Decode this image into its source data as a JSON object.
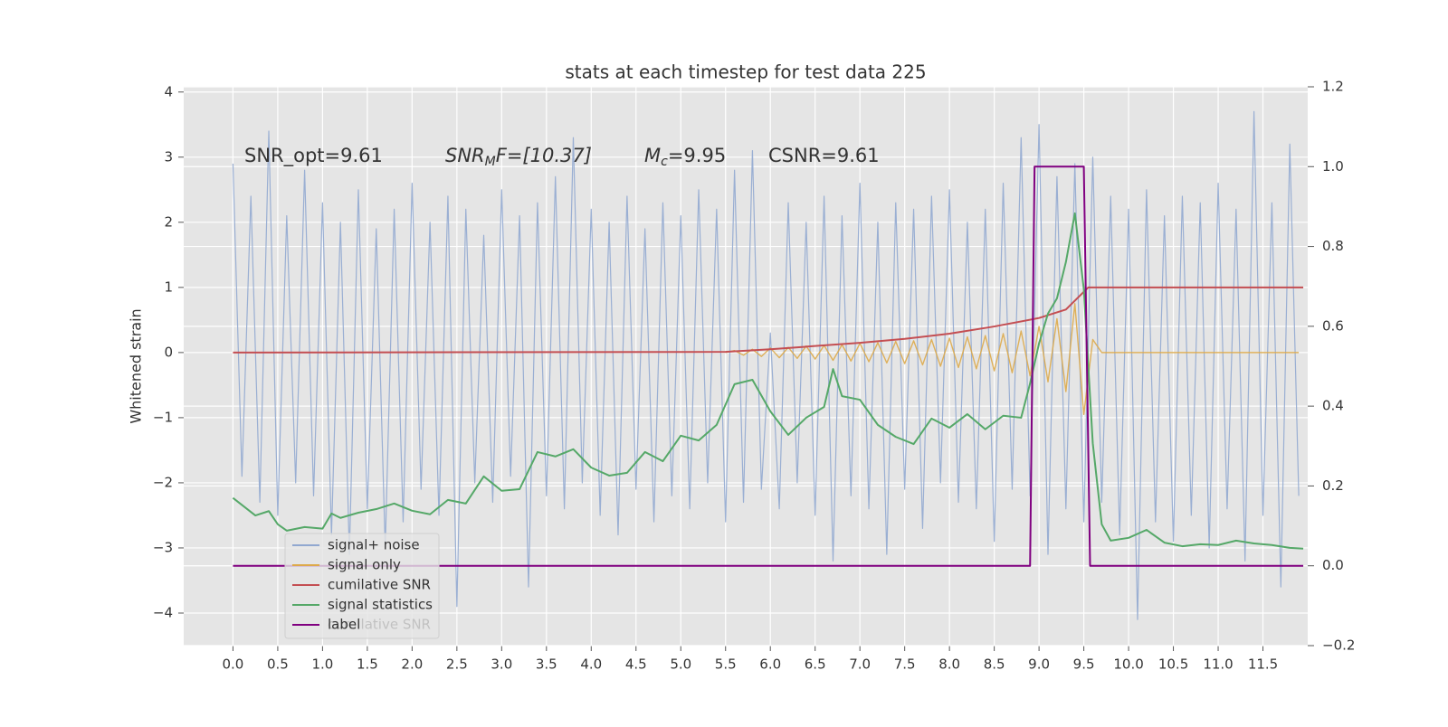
{
  "chart_data": {
    "type": "line",
    "title": "stats at each timestep for test data 225",
    "y_label": "Whitened strain",
    "annotations": [
      "SNR_opt=9.61",
      {
        "text": "SNR",
        "sub": "M",
        "rest": "F=[10.37]"
      },
      {
        "text": "M",
        "sub": "c",
        "rest": "=9.95"
      },
      "CSNR=9.61"
    ],
    "xlim": [
      -0.55,
      12.0
    ],
    "ylim": [
      -4.5,
      4.08
    ],
    "y2lim": [
      -0.2,
      1.2
    ],
    "grid": true,
    "legend": "lower left",
    "xticks": [
      {
        "value": 0,
        "label": "0.0"
      },
      0.5,
      {
        "value": 1,
        "label": "1.0"
      },
      1.5,
      {
        "value": 2,
        "label": "2.0"
      },
      2.5,
      {
        "value": 3,
        "label": "3.0"
      },
      3.5,
      {
        "value": 4,
        "label": "4.0"
      },
      4.5,
      {
        "value": 5,
        "label": "5.0"
      },
      5.5,
      {
        "value": 6,
        "label": "6.0"
      },
      6.5,
      {
        "value": 7,
        "label": "7.0"
      },
      7.5,
      {
        "value": 8,
        "label": "8.0"
      },
      8.5,
      {
        "value": 9,
        "label": "9.0"
      },
      9.5,
      {
        "value": 10,
        "label": "10.0"
      },
      10.5,
      {
        "value": 11,
        "label": "11.0"
      },
      11.5
    ],
    "yticks": [
      {
        "value": -4,
        "label": "−4"
      },
      {
        "value": -3,
        "label": "−3"
      },
      {
        "value": -2,
        "label": "−2"
      },
      {
        "value": -1,
        "label": "−1"
      },
      0,
      1,
      2,
      3,
      4
    ],
    "y2ticks": [
      {
        "value": -0.2,
        "label": "−0.2"
      },
      {
        "value": 0,
        "label": "0.0"
      },
      0.2,
      0.4,
      0.6,
      0.8,
      {
        "value": 1,
        "label": "1.0"
      },
      1.2
    ],
    "series": [
      {
        "name": "signal+ noise",
        "color": "#91a8d0",
        "x": [
          0,
          0.1,
          0.2,
          0.3,
          0.4,
          0.5,
          0.6,
          0.7,
          0.8,
          0.9,
          1,
          1.1,
          1.2,
          1.3,
          1.4,
          1.5,
          1.6,
          1.7,
          1.8,
          1.9,
          2,
          2.1,
          2.2,
          2.3,
          2.4,
          2.5,
          2.6,
          2.7,
          2.8,
          2.9,
          3,
          3.1,
          3.2,
          3.3,
          3.4,
          3.5,
          3.6,
          3.7,
          3.8,
          3.9,
          4,
          4.1,
          4.2,
          4.3,
          4.4,
          4.5,
          4.6,
          4.7,
          4.8,
          4.9,
          5,
          5.1,
          5.2,
          5.3,
          5.4,
          5.5,
          5.6,
          5.7,
          5.8,
          5.9,
          6,
          6.1,
          6.2,
          6.3,
          6.4,
          6.5,
          6.6,
          6.7,
          6.8,
          6.9,
          7,
          7.1,
          7.2,
          7.3,
          7.4,
          7.5,
          7.6,
          7.7,
          7.8,
          7.9,
          8,
          8.1,
          8.2,
          8.3,
          8.4,
          8.5,
          8.6,
          8.7,
          8.8,
          8.9,
          9,
          9.1,
          9.2,
          9.3,
          9.4,
          9.5,
          9.6,
          9.7,
          9.8,
          9.9,
          10,
          10.1,
          10.2,
          10.3,
          10.4,
          10.5,
          10.6,
          10.7,
          10.8,
          10.9,
          11,
          11.1,
          11.2,
          11.3,
          11.4,
          11.5,
          11.6,
          11.7,
          11.8,
          11.9
        ],
        "values": [
          2.9,
          -1.9,
          2.4,
          -2.3,
          3.4,
          -2.5,
          2.1,
          -2.0,
          2.8,
          -2.2,
          2.3,
          -2.8,
          2.0,
          -3.1,
          2.5,
          -2.4,
          1.9,
          -3.0,
          2.2,
          -2.6,
          2.6,
          -2.1,
          2.0,
          -2.5,
          2.4,
          -3.9,
          2.2,
          -2.0,
          1.8,
          -2.3,
          2.5,
          -1.9,
          2.1,
          -3.6,
          2.3,
          -2.2,
          2.7,
          -2.4,
          3.3,
          -2.0,
          2.2,
          -2.5,
          2.0,
          -2.8,
          2.4,
          -2.1,
          1.9,
          -2.6,
          2.3,
          -2.2,
          2.1,
          -2.4,
          2.5,
          -2.0,
          2.2,
          -2.6,
          2.8,
          -2.3,
          3.1,
          -2.1,
          0.3,
          -2.4,
          2.3,
          -2.0,
          2.0,
          -2.5,
          2.4,
          -3.2,
          2.1,
          -2.2,
          2.6,
          -2.4,
          2.0,
          -3.1,
          2.3,
          -2.1,
          2.2,
          -2.7,
          2.4,
          -2.0,
          2.5,
          -2.3,
          2.0,
          -2.4,
          2.2,
          -2.9,
          2.6,
          -2.1,
          3.3,
          -2.2,
          3.5,
          -3.1,
          2.7,
          -2.4,
          2.9,
          -2.6,
          3.0,
          -2.3,
          2.4,
          -2.8,
          2.2,
          -4.1,
          2.5,
          -2.6,
          2.1,
          -2.9,
          2.4,
          -2.5,
          2.3,
          -3.0,
          2.6,
          -2.4,
          2.2,
          -3.2,
          3.7,
          -2.5,
          2.3,
          -3.6,
          3.2,
          -2.2
        ]
      },
      {
        "name": "signal only",
        "color": "#ddaa4a",
        "x": [
          5.5,
          5.6,
          5.7,
          5.8,
          5.9,
          6,
          6.1,
          6.2,
          6.3,
          6.4,
          6.5,
          6.6,
          6.7,
          6.8,
          6.9,
          7,
          7.1,
          7.2,
          7.3,
          7.4,
          7.5,
          7.6,
          7.7,
          7.8,
          7.9,
          8,
          8.1,
          8.2,
          8.3,
          8.4,
          8.5,
          8.6,
          8.7,
          8.8,
          8.9,
          9,
          9.1,
          9.2,
          9.3,
          9.4,
          9.5,
          9.6,
          9.7,
          9.8,
          9.9,
          10,
          10.1,
          10.2,
          10.3,
          10.4,
          10.5,
          10.6,
          10.7,
          10.8,
          10.9,
          11,
          11.1,
          11.2,
          11.3,
          11.4,
          11.5,
          11.6,
          11.7,
          11.8,
          11.9
        ],
        "values": [
          0,
          0.03,
          -0.04,
          0.05,
          -0.06,
          0.07,
          -0.08,
          0.08,
          -0.09,
          0.1,
          -0.1,
          0.11,
          -0.12,
          0.12,
          -0.13,
          0.14,
          -0.14,
          0.15,
          -0.16,
          0.17,
          -0.17,
          0.18,
          -0.19,
          0.2,
          -0.21,
          0.22,
          -0.23,
          0.24,
          -0.25,
          0.26,
          -0.28,
          0.29,
          -0.31,
          0.33,
          -0.36,
          0.4,
          -0.45,
          0.52,
          -0.6,
          0.75,
          -0.95,
          0.2,
          0,
          0,
          0,
          0,
          0,
          0,
          0,
          0,
          0,
          0,
          0,
          0,
          0,
          0,
          0,
          0,
          0,
          0,
          0,
          0,
          0,
          0,
          0
        ]
      },
      {
        "name": "cumilative SNR",
        "color": "#c44e52",
        "x": [
          0,
          5.5,
          6,
          6.5,
          7,
          7.5,
          8,
          8.5,
          9,
          9.3,
          9.55,
          11.95
        ],
        "values": [
          0,
          0.01,
          0.05,
          0.1,
          0.15,
          0.21,
          0.29,
          0.4,
          0.53,
          0.66,
          1.0,
          1.0
        ]
      },
      {
        "name": "signal statistics",
        "color": "#55a868",
        "axis": "y2",
        "x": [
          0,
          0.25,
          0.4,
          0.5,
          0.6,
          0.8,
          1,
          1.1,
          1.2,
          1.4,
          1.6,
          1.8,
          2,
          2.2,
          2.4,
          2.6,
          2.8,
          3,
          3.2,
          3.4,
          3.6,
          3.8,
          4,
          4.2,
          4.4,
          4.6,
          4.8,
          5,
          5.2,
          5.4,
          5.6,
          5.8,
          6,
          6.2,
          6.4,
          6.6,
          6.7,
          6.8,
          7,
          7.2,
          7.4,
          7.6,
          7.8,
          8,
          8.2,
          8.4,
          8.6,
          8.8,
          8.9,
          9,
          9.1,
          9.2,
          9.3,
          9.4,
          9.5,
          9.6,
          9.7,
          9.8,
          10,
          10.2,
          10.4,
          10.6,
          10.8,
          11,
          11.2,
          11.4,
          11.6,
          11.8,
          11.95
        ],
        "values": [
          0.17,
          0.126,
          0.137,
          0.104,
          0.088,
          0.097,
          0.093,
          0.131,
          0.12,
          0.133,
          0.142,
          0.156,
          0.138,
          0.129,
          0.165,
          0.156,
          0.224,
          0.188,
          0.192,
          0.285,
          0.274,
          0.292,
          0.246,
          0.226,
          0.233,
          0.285,
          0.262,
          0.326,
          0.314,
          0.353,
          0.455,
          0.466,
          0.387,
          0.328,
          0.371,
          0.398,
          0.493,
          0.425,
          0.416,
          0.353,
          0.323,
          0.305,
          0.369,
          0.346,
          0.38,
          0.342,
          0.376,
          0.371,
          0.457,
          0.557,
          0.632,
          0.67,
          0.761,
          0.883,
          0.693,
          0.307,
          0.104,
          0.063,
          0.07,
          0.09,
          0.058,
          0.049,
          0.054,
          0.052,
          0.063,
          0.056,
          0.052,
          0.045,
          0.043
        ]
      },
      {
        "name": "label",
        "color": "#800080",
        "axis": "y2",
        "x": [
          0,
          8.9,
          8.95,
          9.5,
          9.57,
          11.95
        ],
        "values": [
          0,
          0,
          1,
          1,
          0,
          0
        ]
      }
    ]
  }
}
